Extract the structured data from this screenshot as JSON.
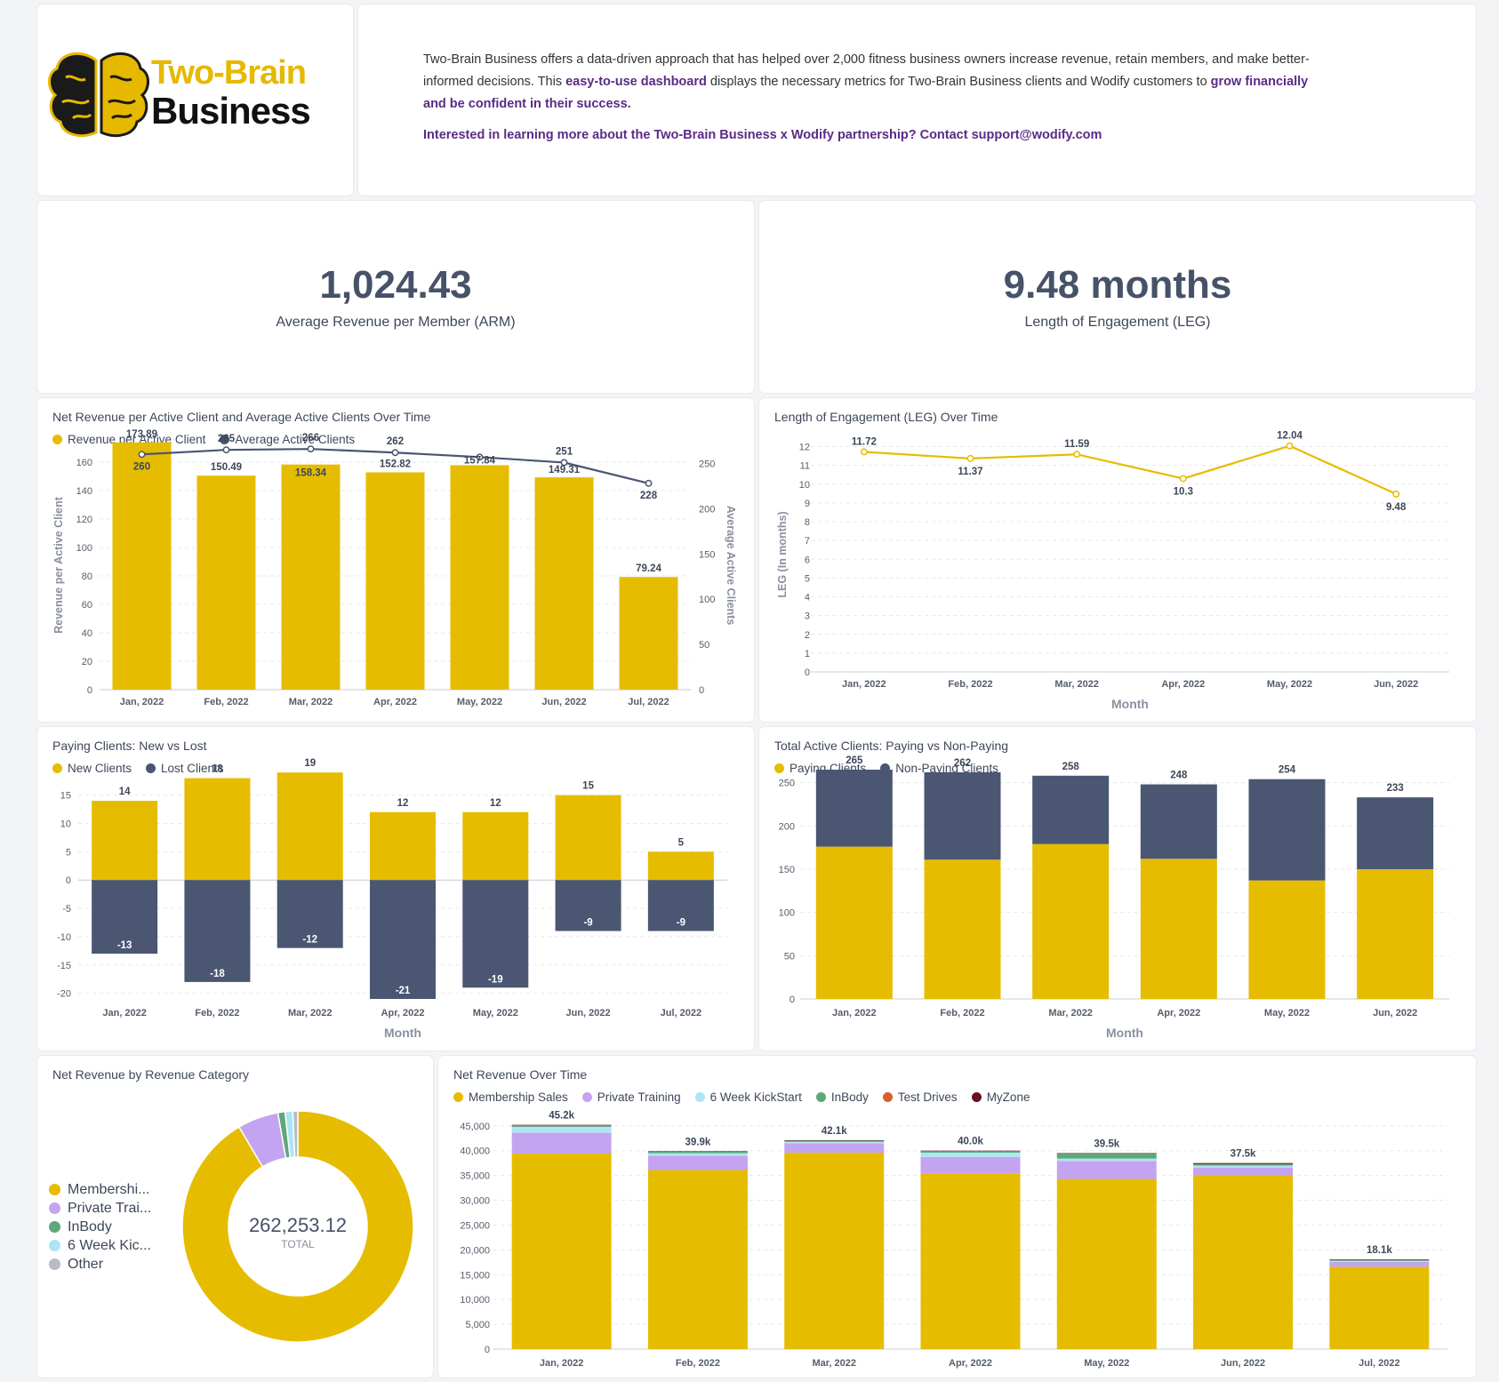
{
  "header": {
    "logo": {
      "line1": "Two-Brain",
      "line2": "Business"
    },
    "intro": {
      "p1_a": "Two-Brain Business offers a data-driven approach that has helped over 2,000  fitness business owners increase revenue, retain members, and make better-informed decisions. This ",
      "p1_b": "easy-to-use dashboard",
      "p1_c": " displays the necessary metrics for Two-Brain Business clients and Wodify customers to ",
      "p1_d": "grow financially and be confident in their success.",
      "p2": "Interested in learning more about the Two-Brain Business x Wodify partnership? Contact support@wodify.com"
    }
  },
  "kpis": {
    "arm": {
      "value": "1,024.43",
      "label": "Average Revenue per Member (ARM)"
    },
    "leg": {
      "value": "9.48 months",
      "label": "Length of Engagement (LEG)"
    }
  },
  "colors": {
    "yellow": "#e6bc00",
    "navy": "#4a5672",
    "purple": "#c4a4f0",
    "lightblue": "#aee4f5",
    "green": "#5ea77a",
    "orange": "#d4622a",
    "maroon": "#6b1020",
    "gray": "#b8bcc4"
  },
  "chart_data": [
    {
      "id": "rev_clients",
      "type": "bar",
      "title": "Net Revenue per Active Client and Average Active Clients Over Time",
      "categories": [
        "Jan, 2022",
        "Feb, 2022",
        "Mar, 2022",
        "Apr, 2022",
        "May, 2022",
        "Jun, 2022",
        "Jul, 2022"
      ],
      "series": [
        {
          "name": "Revenue per Active Client",
          "type": "bar",
          "axis": "left",
          "values": [
            173.89,
            150.49,
            158.34,
            152.82,
            157.84,
            149.31,
            79.24
          ]
        },
        {
          "name": "Average Active Clients",
          "type": "line",
          "axis": "right",
          "values": [
            260,
            265,
            266,
            262,
            257,
            251,
            228
          ]
        }
      ],
      "point_labels": [
        "260",
        "265",
        "266",
        "262",
        "",
        "251",
        "228"
      ],
      "bar_labels": [
        "173.89",
        "150.49",
        "158.34",
        "152.82",
        "157.84",
        "149.31",
        "79.24"
      ],
      "ylabel": "Revenue per Active Client",
      "y2label": "Average Active Clients",
      "ylim": [
        0,
        175
      ],
      "y2lim": [
        0,
        275
      ],
      "yticks": [
        0,
        20,
        40,
        60,
        80,
        100,
        120,
        140,
        160
      ],
      "y2ticks": [
        0,
        50,
        100,
        150,
        200,
        250
      ]
    },
    {
      "id": "leg",
      "type": "line",
      "title": "Length of Engagement (LEG) Over Time",
      "categories": [
        "Jan, 2022",
        "Feb, 2022",
        "Mar, 2022",
        "Apr, 2022",
        "May, 2022",
        "Jun, 2022"
      ],
      "values": [
        11.72,
        11.37,
        11.59,
        10.3,
        12.04,
        9.48
      ],
      "labels": [
        "11.72",
        "11.37",
        "11.59",
        "10.3",
        "12.04",
        "9.48"
      ],
      "xlabel": "Month",
      "ylabel": "LEG (In months)",
      "ylim": [
        0,
        12.5
      ],
      "yticks": [
        0,
        1,
        2,
        3,
        4,
        5,
        6,
        7,
        8,
        9,
        10,
        11,
        12
      ]
    },
    {
      "id": "new_lost",
      "type": "bar",
      "title": "Paying Clients: New vs Lost",
      "categories": [
        "Jan, 2022",
        "Feb, 2022",
        "Mar, 2022",
        "Apr, 2022",
        "May, 2022",
        "Jun, 2022",
        "Jul, 2022"
      ],
      "series": [
        {
          "name": "New Clients",
          "values": [
            14,
            18,
            19,
            12,
            12,
            15,
            5
          ]
        },
        {
          "name": "Lost Clients",
          "values": [
            -13,
            -18,
            -12,
            -21,
            -19,
            -9,
            -9
          ]
        }
      ],
      "new_labels": [
        "14",
        "18",
        "19",
        "12",
        "12",
        "15",
        "5"
      ],
      "lost_labels": [
        "-13",
        "-18",
        "-12",
        "-21",
        "-19",
        "-9",
        "-9"
      ],
      "xlabel": "Month",
      "ylim": [
        -21,
        19.5
      ],
      "yticks": [
        -20,
        -15,
        -10,
        -5,
        0,
        5,
        10,
        15
      ]
    },
    {
      "id": "paying_nonpaying",
      "type": "bar",
      "stacked": true,
      "title": "Total Active Clients: Paying vs Non-Paying",
      "categories": [
        "Jan, 2022",
        "Feb, 2022",
        "Mar, 2022",
        "Apr, 2022",
        "May, 2022",
        "Jun, 2022"
      ],
      "series": [
        {
          "name": "Paying Clients",
          "values": [
            176,
            161,
            179,
            162,
            137,
            150
          ]
        },
        {
          "name": "Non-Paying Clients",
          "values": [
            89,
            101,
            79,
            86,
            117,
            83
          ]
        }
      ],
      "total_labels": [
        "265",
        "262",
        "258",
        "248",
        "254",
        "233"
      ],
      "xlabel": "Month",
      "ylim": [
        0,
        265
      ],
      "yticks": [
        0,
        50,
        100,
        150,
        200,
        250
      ]
    },
    {
      "id": "category_donut",
      "type": "pie",
      "title": "Net Revenue by Revenue Category",
      "center_value": "262,253.12",
      "center_label": "TOTAL",
      "slices": [
        {
          "name": "Membershi...",
          "value": 240000,
          "color": "#e6bc00"
        },
        {
          "name": "Private Trai...",
          "value": 15000,
          "color": "#c4a4f0"
        },
        {
          "name": "InBody",
          "value": 2600,
          "color": "#5ea77a"
        },
        {
          "name": "6 Week Kic...",
          "value": 2800,
          "color": "#aee4f5"
        },
        {
          "name": "Other",
          "value": 1853.12,
          "color": "#b8bcc4"
        }
      ]
    },
    {
      "id": "rev_over_time",
      "type": "bar",
      "stacked": true,
      "title": "Net Revenue Over Time",
      "categories": [
        "Jan, 2022",
        "Feb, 2022",
        "Mar, 2022",
        "Apr, 2022",
        "May, 2022",
        "Jun, 2022",
        "Jul, 2022"
      ],
      "series": [
        {
          "name": "Membership Sales",
          "color": "#e6bc00",
          "values": [
            39400,
            36100,
            39600,
            35400,
            34300,
            35100,
            16600
          ]
        },
        {
          "name": "Private Training",
          "color": "#c4a4f0",
          "values": [
            4200,
            2900,
            1900,
            3300,
            3600,
            1500,
            1000
          ]
        },
        {
          "name": "6 Week KickStart",
          "color": "#aee4f5",
          "values": [
            1200,
            500,
            300,
            900,
            500,
            400,
            200
          ]
        },
        {
          "name": "InBody",
          "color": "#5ea77a",
          "values": [
            300,
            300,
            200,
            300,
            1000,
            300,
            200
          ]
        },
        {
          "name": "Test Drives",
          "color": "#d4622a",
          "values": [
            0,
            0,
            0,
            0,
            0,
            0,
            0
          ]
        },
        {
          "name": "MyZone",
          "color": "#6b1020",
          "values": [
            100,
            100,
            100,
            100,
            100,
            200,
            100
          ]
        }
      ],
      "total_labels": [
        "45.2k",
        "39.9k",
        "42.1k",
        "40.0k",
        "39.5k",
        "37.5k",
        "18.1k"
      ],
      "ylim": [
        0,
        45500
      ],
      "yticks": [
        0,
        5000,
        10000,
        15000,
        20000,
        25000,
        30000,
        35000,
        40000,
        45000
      ],
      "ytick_labels": [
        "0",
        "5,000",
        "10,000",
        "15,000",
        "20,000",
        "25,000",
        "30,000",
        "35,000",
        "40,000",
        "45,000"
      ]
    }
  ]
}
